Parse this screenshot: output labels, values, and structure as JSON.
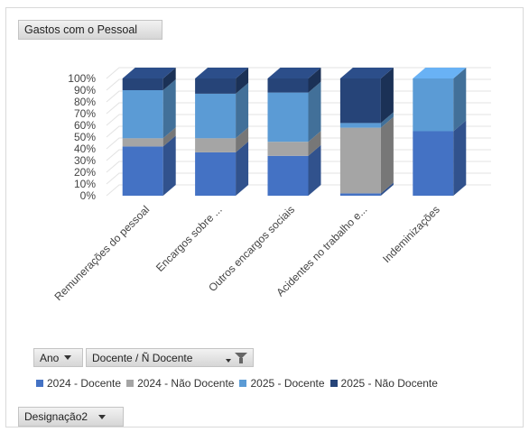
{
  "pivot": {
    "title_field": "Gastos com o Pessoal",
    "row_field": "Ano",
    "column_field": "Docente / Ñ Docente",
    "filter_field": "Designação2"
  },
  "chart_data": {
    "type": "bar",
    "stacked": true,
    "three_d": true,
    "percent": true,
    "title": "",
    "xlabel": "",
    "ylabel": "",
    "ylim": [
      0,
      100
    ],
    "y_ticks": [
      "0%",
      "10%",
      "20%",
      "30%",
      "40%",
      "50%",
      "60%",
      "70%",
      "80%",
      "90%",
      "100%"
    ],
    "categories": [
      "Remunerações do pessoal",
      "Encargos sobre ...",
      "Outros encargos sociais",
      "Acidentes no trabalho e...",
      "Indeminizações"
    ],
    "series": [
      {
        "name": "2024 - Docente",
        "color": "#4472c4",
        "values": [
          42,
          37,
          34,
          2,
          55
        ]
      },
      {
        "name": "2024 - Não Docente",
        "color": "#a5a5a5",
        "values": [
          7,
          12,
          12,
          56,
          0
        ]
      },
      {
        "name": "2025 - Docente",
        "color": "#5b9bd5",
        "values": [
          41,
          38,
          42,
          4,
          45
        ]
      },
      {
        "name": "2025 - Não Docente",
        "color": "#264478",
        "values": [
          10,
          13,
          12,
          38,
          0
        ]
      }
    ],
    "legend_position": "bottom",
    "grid": true
  }
}
